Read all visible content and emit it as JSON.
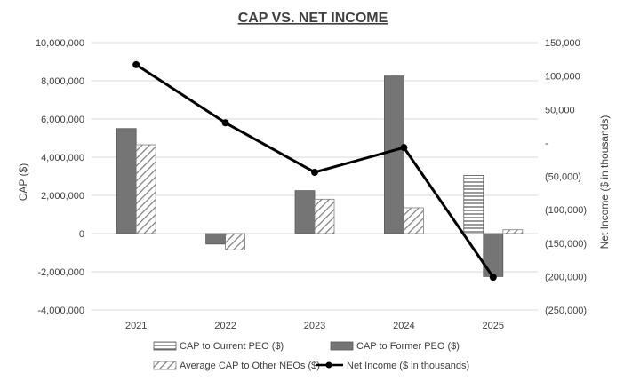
{
  "chart_data": {
    "type": "bar",
    "title": "CAP VS. NET INCOME",
    "categories": [
      "2021",
      "2022",
      "2023",
      "2024",
      "2025"
    ],
    "ylabel": "CAP ($)",
    "ylabel_right": "Net Income ($ in thousands)",
    "ylim": [
      -4000000,
      10000000
    ],
    "ylim_right": [
      -250000,
      150000
    ],
    "y_ticks": [
      10000000,
      8000000,
      6000000,
      4000000,
      2000000,
      0,
      -2000000,
      -4000000
    ],
    "y_tick_labels": [
      "10,000,000",
      "8,000,000",
      "6,000,000",
      "4,000,000",
      "2,000,000",
      "0",
      "-2,000,000",
      "-4,000,000"
    ],
    "y_right_ticks": [
      150000,
      100000,
      50000,
      0,
      -50000,
      -100000,
      -150000,
      -200000,
      -250000
    ],
    "y_right_tick_labels": [
      "150,000",
      "100,000",
      "50,000",
      "-",
      "(50,000)",
      "(100,000)",
      "(150,000)",
      "(200,000)",
      "(250,000)"
    ],
    "gridlines": true,
    "legend_position": "bottom",
    "series": [
      {
        "name": "CAP to Current PEO ($)",
        "type": "bar",
        "axis": "left",
        "pattern": "horizontal-lines",
        "values": [
          null,
          null,
          null,
          null,
          3050000
        ]
      },
      {
        "name": "CAP to Former PEO ($)",
        "type": "bar",
        "axis": "left",
        "pattern": "solid",
        "values": [
          5500000,
          -550000,
          2250000,
          8250000,
          -2250000
        ]
      },
      {
        "name": "Average CAP to Other NEOs ($)",
        "type": "bar",
        "axis": "left",
        "pattern": "diagonal-lines",
        "values": [
          4650000,
          -850000,
          1800000,
          1350000,
          200000
        ]
      },
      {
        "name": "Net Income ($ in thousands)",
        "type": "line",
        "axis": "right",
        "values": [
          117000,
          30000,
          -44000,
          -7000,
          -201000
        ]
      }
    ]
  },
  "colors": {
    "bar_dark": "#757575",
    "bar_edge": "#595959",
    "line": "#000000",
    "grid": "#d9d9d9",
    "text": "#404040"
  }
}
